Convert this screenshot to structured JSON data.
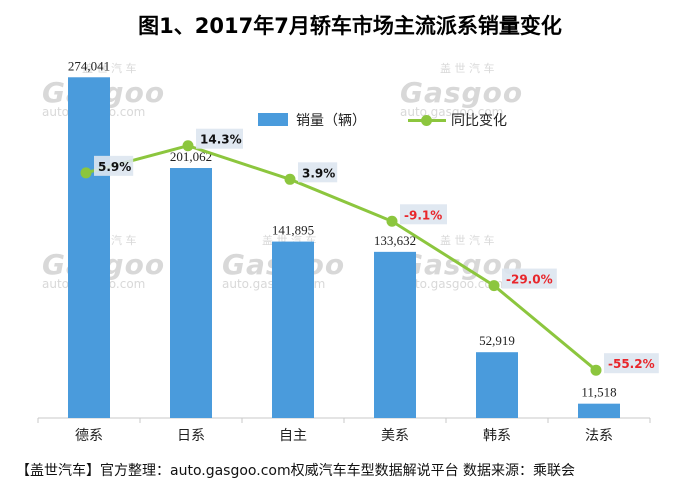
{
  "title": "图1、2017年7月轿车市场主流派系销量变化",
  "footer": "【盖世汽车】官方整理：auto.gasgoo.com权威汽车车型数据解说平台 数据来源：乘联会",
  "watermark": {
    "cn": "盖 世 汽 车",
    "brand": "Gasgoo",
    "url": "auto.gasgoo.com"
  },
  "colors": {
    "bar": "#4a9bdc",
    "line": "#8cc63e",
    "negative": "#e8262b",
    "positive": "#111111",
    "label_bg": "#dde6f0"
  },
  "chart_data": {
    "type": "bar",
    "title": "图1、2017年7月轿车市场主流派系销量变化",
    "categories": [
      "德系",
      "日系",
      "自主",
      "美系",
      "韩系",
      "法系"
    ],
    "series": [
      {
        "name": "销量（辆）",
        "type": "bar",
        "values": [
          274041,
          201062,
          141895,
          133632,
          52919,
          11518
        ],
        "labels": [
          "274,041",
          "201,062",
          "141,895",
          "133,632",
          "52,919",
          "11,518"
        ]
      },
      {
        "name": "同比变化",
        "type": "line",
        "values": [
          5.9,
          14.3,
          3.9,
          -9.1,
          -29.0,
          -55.2
        ],
        "labels": [
          "5.9%",
          "14.3%",
          "3.9%",
          "-9.1%",
          "-29.0%",
          "-55.2%"
        ]
      }
    ],
    "ylim_bar": [
      0,
      300000
    ],
    "ylim_line": [
      -70,
      30
    ],
    "legend": "top-center",
    "grid": false
  }
}
